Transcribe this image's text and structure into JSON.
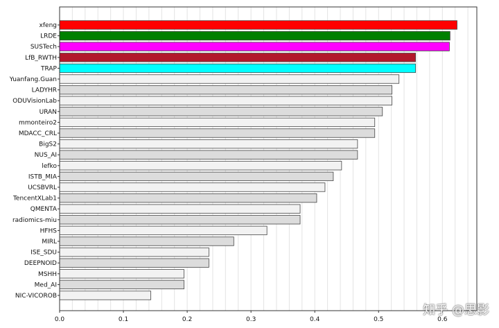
{
  "chart_data": {
    "type": "bar",
    "orientation": "horizontal",
    "title": "",
    "xlabel": "",
    "ylabel": "",
    "xlim": [
      0,
      0.65
    ],
    "xticks": [
      0.0,
      0.1,
      0.2,
      0.3,
      0.4,
      0.5,
      0.6
    ],
    "xtick_labels": [
      "0.0",
      "0.1",
      "0.2",
      "0.3",
      "0.4",
      "0.5",
      "0.6"
    ],
    "grid": "vertical",
    "categories": [
      "xfeng",
      "LRDE",
      "SUSTech",
      "LfB_RWTH",
      "TRAP",
      "Yuanfang.Guan",
      "LADYHR",
      "ODUVisionLab",
      "URAN",
      "mmonteiro2",
      "MDACC_CRL",
      "BigS2",
      "NUS_AI",
      "lefko",
      "ISTB_MIA",
      "UCSBVRL",
      "TencentXLab1",
      "QMENTA",
      "radiomics-miu",
      "HFHS",
      "MIRL",
      "ISE_SDU",
      "DEEPNOID",
      "MSHH",
      "Med_AI",
      "NIC-VICOROB"
    ],
    "values": [
      0.623,
      0.612,
      0.611,
      0.558,
      0.558,
      0.532,
      0.521,
      0.521,
      0.506,
      0.494,
      0.494,
      0.467,
      0.467,
      0.442,
      0.429,
      0.416,
      0.403,
      0.377,
      0.377,
      0.325,
      0.273,
      0.234,
      0.234,
      0.195,
      0.195,
      0.143
    ],
    "colors": [
      "#ff0000",
      "#008000",
      "#ff00ff",
      "#b2182b",
      "#00ffff",
      "#f2f2f2",
      "#dcdcdc",
      "#f2f2f2",
      "#dcdcdc",
      "#f2f2f2",
      "#dcdcdc",
      "#f2f2f2",
      "#dcdcdc",
      "#f2f2f2",
      "#dcdcdc",
      "#f2f2f2",
      "#dcdcdc",
      "#f2f2f2",
      "#dcdcdc",
      "#f2f2f2",
      "#dcdcdc",
      "#f2f2f2",
      "#dcdcdc",
      "#f2f2f2",
      "#dcdcdc",
      "#f2f2f2"
    ]
  },
  "watermark": "知乎 @思影"
}
